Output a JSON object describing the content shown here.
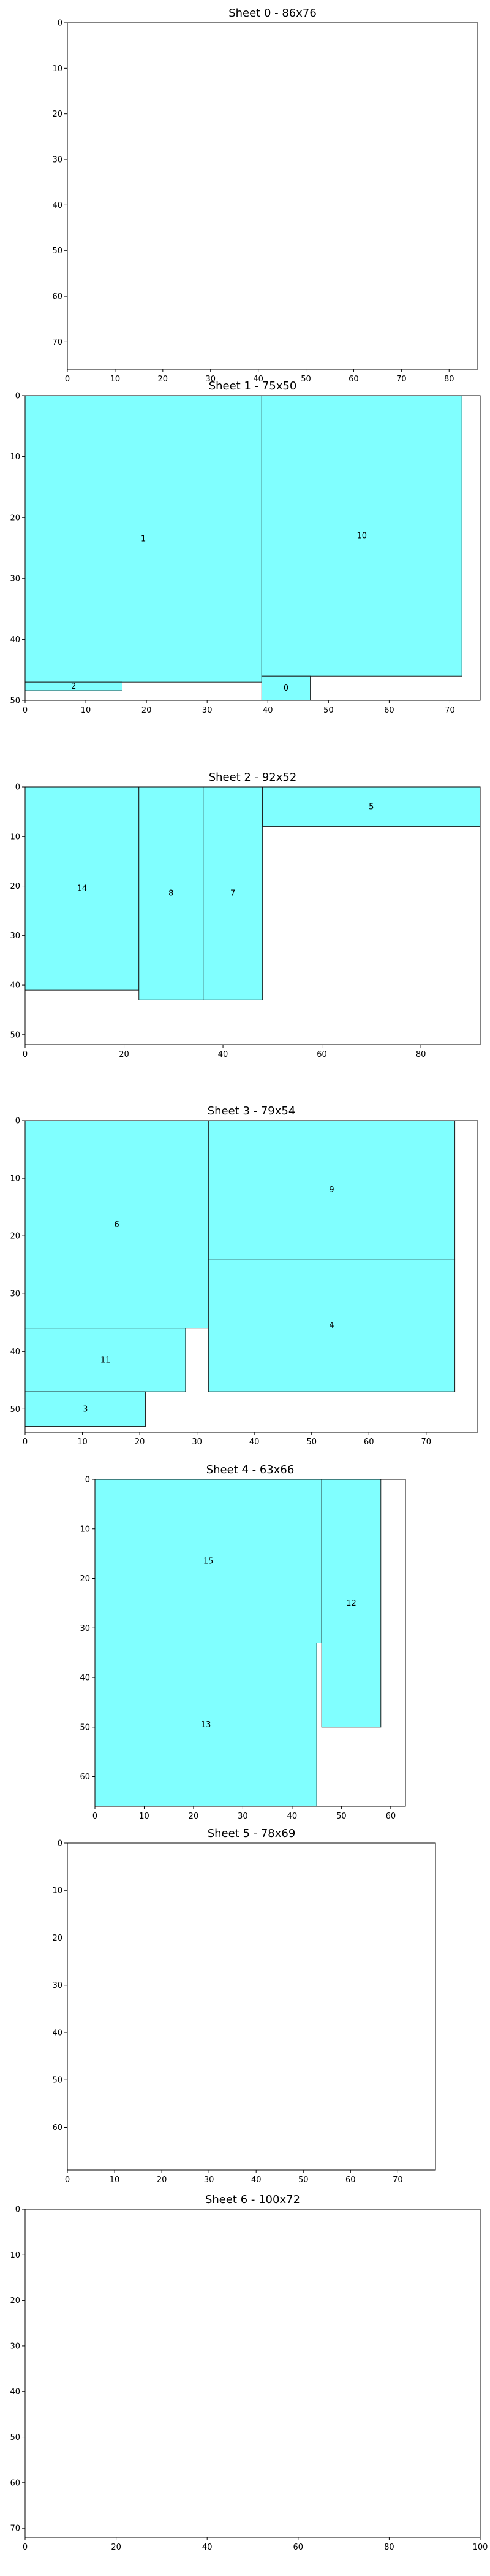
{
  "chart_data": [
    {
      "type": "rectangles",
      "title": "Sheet 0 - 86x76",
      "sheet_width": 86,
      "sheet_height": 76,
      "xlim": [
        0,
        86
      ],
      "ylim": [
        0,
        76
      ],
      "x_ticks": [
        0,
        10,
        20,
        30,
        40,
        50,
        60,
        70,
        80
      ],
      "y_ticks": [
        0,
        10,
        20,
        30,
        40,
        50,
        60,
        70
      ],
      "y_axis_inverted": true,
      "fill_color": "#80ffff",
      "edge_color": "#1a1a1a",
      "rects": []
    },
    {
      "type": "rectangles",
      "title": "Sheet 1 - 75x50",
      "sheet_width": 75,
      "sheet_height": 50,
      "xlim": [
        0,
        75
      ],
      "ylim": [
        0,
        50
      ],
      "x_ticks": [
        0,
        10,
        20,
        30,
        40,
        50,
        60,
        70
      ],
      "y_ticks": [
        0,
        10,
        20,
        30,
        40,
        50
      ],
      "y_axis_inverted": true,
      "fill_color": "#80ffff",
      "edge_color": "#1a1a1a",
      "rects": [
        {
          "id": "1",
          "x": 0,
          "y": 0,
          "w": 39,
          "h": 47
        },
        {
          "id": "10",
          "x": 39,
          "y": 0,
          "w": 33,
          "h": 46
        },
        {
          "id": "2",
          "x": 0,
          "y": 47,
          "w": 16,
          "h": 1.4
        },
        {
          "id": "0",
          "x": 39,
          "y": 46,
          "w": 8,
          "h": 4
        }
      ]
    },
    {
      "type": "rectangles",
      "title": "Sheet 2 - 92x52",
      "sheet_width": 92,
      "sheet_height": 52,
      "xlim": [
        0,
        92
      ],
      "ylim": [
        0,
        52
      ],
      "x_ticks": [
        0,
        20,
        40,
        60,
        80
      ],
      "y_ticks": [
        0,
        10,
        20,
        30,
        40,
        50
      ],
      "y_axis_inverted": true,
      "fill_color": "#80ffff",
      "edge_color": "#1a1a1a",
      "rects": [
        {
          "id": "14",
          "x": 0,
          "y": 0,
          "w": 23,
          "h": 41
        },
        {
          "id": "8",
          "x": 23,
          "y": 0,
          "w": 13,
          "h": 43
        },
        {
          "id": "7",
          "x": 36,
          "y": 0,
          "w": 12,
          "h": 43
        },
        {
          "id": "5",
          "x": 48,
          "y": 0,
          "w": 44,
          "h": 8
        }
      ]
    },
    {
      "type": "rectangles",
      "title": "Sheet 3 - 79x54",
      "sheet_width": 79,
      "sheet_height": 54,
      "xlim": [
        0,
        79
      ],
      "ylim": [
        0,
        54
      ],
      "x_ticks": [
        0,
        10,
        20,
        30,
        40,
        50,
        60,
        70
      ],
      "y_ticks": [
        0,
        10,
        20,
        30,
        40,
        50
      ],
      "y_axis_inverted": true,
      "fill_color": "#80ffff",
      "edge_color": "#1a1a1a",
      "rects": [
        {
          "id": "6",
          "x": 0,
          "y": 0,
          "w": 32,
          "h": 36
        },
        {
          "id": "9",
          "x": 32,
          "y": 0,
          "w": 43,
          "h": 24
        },
        {
          "id": "4",
          "x": 32,
          "y": 24,
          "w": 43,
          "h": 23
        },
        {
          "id": "11",
          "x": 0,
          "y": 36,
          "w": 28,
          "h": 11
        },
        {
          "id": "3",
          "x": 0,
          "y": 47,
          "w": 21,
          "h": 6
        }
      ]
    },
    {
      "type": "rectangles",
      "title": "Sheet 4 - 63x66",
      "sheet_width": 63,
      "sheet_height": 66,
      "xlim": [
        0,
        63
      ],
      "ylim": [
        0,
        66
      ],
      "x_ticks": [
        0,
        10,
        20,
        30,
        40,
        50,
        60
      ],
      "y_ticks": [
        0,
        10,
        20,
        30,
        40,
        50,
        60
      ],
      "y_axis_inverted": true,
      "fill_color": "#80ffff",
      "edge_color": "#1a1a1a",
      "rects": [
        {
          "id": "15",
          "x": 0,
          "y": 0,
          "w": 46,
          "h": 33
        },
        {
          "id": "12",
          "x": 46,
          "y": 0,
          "w": 12,
          "h": 50
        },
        {
          "id": "13",
          "x": 0,
          "y": 33,
          "w": 45,
          "h": 33
        }
      ]
    },
    {
      "type": "rectangles",
      "title": "Sheet 5 - 78x69",
      "sheet_width": 78,
      "sheet_height": 69,
      "xlim": [
        0,
        78
      ],
      "ylim": [
        0,
        69
      ],
      "x_ticks": [
        0,
        10,
        20,
        30,
        40,
        50,
        60,
        70
      ],
      "y_ticks": [
        0,
        10,
        20,
        30,
        40,
        50,
        60
      ],
      "y_axis_inverted": true,
      "fill_color": "#80ffff",
      "edge_color": "#1a1a1a",
      "rects": []
    },
    {
      "type": "rectangles",
      "title": "Sheet 6 - 100x72",
      "sheet_width": 100,
      "sheet_height": 72,
      "xlim": [
        0,
        100
      ],
      "ylim": [
        0,
        72
      ],
      "x_ticks": [
        0,
        20,
        40,
        60,
        80,
        100
      ],
      "y_ticks": [
        0,
        10,
        20,
        30,
        40,
        50,
        60,
        70
      ],
      "y_axis_inverted": true,
      "fill_color": "#80ffff",
      "edge_color": "#1a1a1a",
      "rects": []
    }
  ]
}
